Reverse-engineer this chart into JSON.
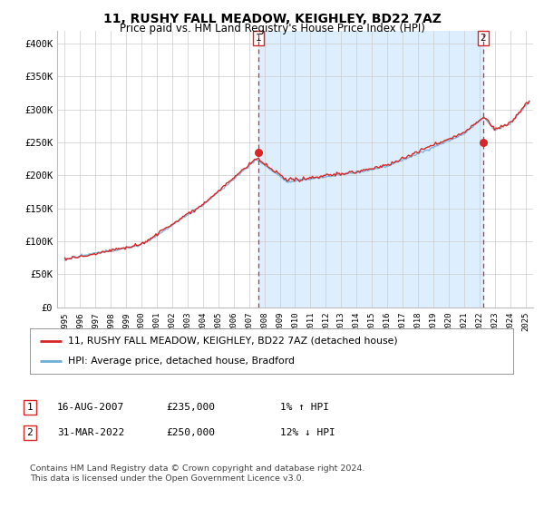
{
  "title": "11, RUSHY FALL MEADOW, KEIGHLEY, BD22 7AZ",
  "subtitle": "Price paid vs. HM Land Registry's House Price Index (HPI)",
  "ylim": [
    0,
    420000
  ],
  "yticks": [
    0,
    50000,
    100000,
    150000,
    200000,
    250000,
    300000,
    350000,
    400000
  ],
  "ytick_labels": [
    "£0",
    "£50K",
    "£100K",
    "£150K",
    "£200K",
    "£250K",
    "£300K",
    "£350K",
    "£400K"
  ],
  "xlim_start": 1994.5,
  "xlim_end": 2025.5,
  "hpi_color": "#6baed6",
  "price_color": "#d62728",
  "shading_color": "#ddeeff",
  "transaction1_x": 2007.62,
  "transaction1_y": 235000,
  "transaction2_x": 2022.25,
  "transaction2_y": 250000,
  "legend_label1": "11, RUSHY FALL MEADOW, KEIGHLEY, BD22 7AZ (detached house)",
  "legend_label2": "HPI: Average price, detached house, Bradford",
  "footer": "Contains HM Land Registry data © Crown copyright and database right 2024.\nThis data is licensed under the Open Government Licence v3.0.",
  "background_color": "#ffffff",
  "grid_color": "#cccccc",
  "chart_bg": "#f0f4fa"
}
